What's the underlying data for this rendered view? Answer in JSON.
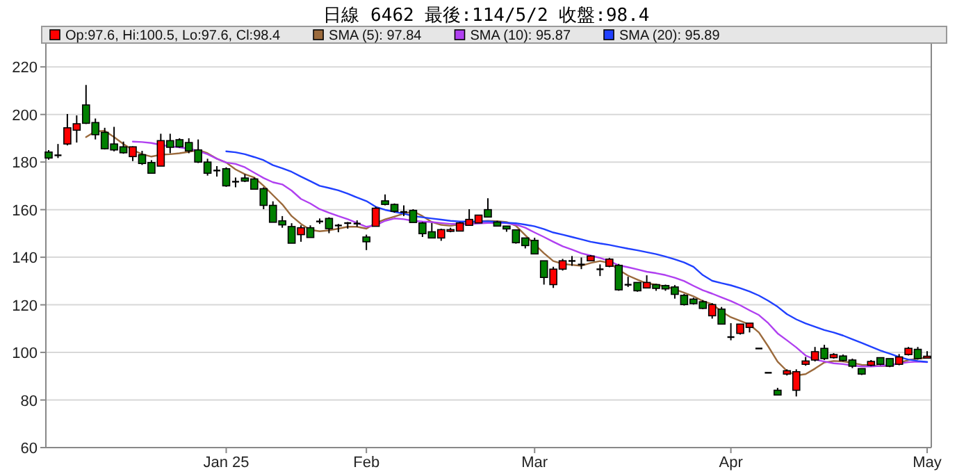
{
  "chart_data": {
    "type": "candlestick",
    "title": "日線 6462 最後:114/5/2 收盤:98.4",
    "categories": [
      null,
      null,
      null,
      null,
      null,
      null,
      null,
      null,
      null,
      null,
      null,
      null,
      null,
      null,
      null,
      null,
      null,
      null,
      null,
      "Jan 25",
      null,
      null,
      null,
      null,
      null,
      null,
      null,
      null,
      null,
      null,
      null,
      null,
      null,
      null,
      "Feb",
      null,
      null,
      null,
      null,
      null,
      null,
      null,
      null,
      null,
      null,
      null,
      null,
      null,
      null,
      null,
      null,
      null,
      "Mar",
      null,
      null,
      null,
      null,
      null,
      null,
      null,
      null,
      null,
      null,
      null,
      null,
      null,
      null,
      null,
      null,
      null,
      null,
      null,
      null,
      "Apr",
      null,
      null,
      null,
      null,
      null,
      null,
      null,
      null,
      null,
      null,
      null,
      null,
      null,
      null,
      null,
      null,
      null,
      null,
      null,
      null,
      "May"
    ],
    "ylim": [
      60,
      230
    ],
    "yticks": [
      60,
      80,
      100,
      120,
      140,
      160,
      180,
      200,
      220
    ],
    "grid": "y",
    "legend": "top",
    "series": [
      {
        "type": "candlestick",
        "name": "Op:97.6, Hi:100.5, Lo:97.6, Cl:98.4",
        "color": "#ff0000",
        "ohlc": [
          [
            184.2,
            185,
            181,
            181.7
          ],
          [
            182.9,
            187.6,
            181.7,
            182.9
          ],
          [
            187.6,
            200.2,
            187.0,
            194.4
          ],
          [
            193.4,
            199.6,
            188.2,
            196.1
          ],
          [
            204.0,
            212.4,
            196.0,
            196.3
          ],
          [
            196.6,
            198.3,
            189.5,
            191.5
          ],
          [
            192.5,
            194.4,
            185.3,
            185.6
          ],
          [
            187.6,
            194.8,
            184.5,
            185.1
          ],
          [
            186.4,
            188.6,
            183.5,
            183.9
          ],
          [
            182.3,
            186.6,
            180.4,
            186.4
          ],
          [
            183.1,
            184.7,
            178.8,
            179.4
          ],
          [
            179.8,
            180.8,
            175.3,
            175.3
          ],
          [
            178.3,
            191.9,
            178.3,
            189.0
          ],
          [
            189.0,
            191.9,
            183.7,
            186.2
          ],
          [
            189.4,
            190.0,
            186.0,
            186.4
          ],
          [
            188.2,
            190.0,
            183.7,
            184.7
          ],
          [
            185.1,
            189.5,
            179.6,
            180.0
          ],
          [
            180.0,
            181.4,
            174.3,
            175.3
          ],
          [
            176.5,
            178.3,
            173.9,
            176.5
          ],
          [
            177.2,
            177.8,
            169.6,
            170.0
          ],
          [
            171.8,
            173.5,
            169.4,
            171.8
          ],
          [
            173.3,
            174.9,
            171.6,
            172.0
          ],
          [
            172.9,
            173.5,
            168.6,
            168.6
          ],
          [
            168.8,
            169.4,
            160.2,
            161.8
          ],
          [
            161.8,
            163.5,
            154.7,
            154.7
          ],
          [
            155.3,
            157.3,
            152.4,
            153.6
          ],
          [
            152.9,
            154.3,
            145.9,
            145.9
          ],
          [
            149.5,
            153.4,
            146.5,
            152.4
          ],
          [
            152.4,
            153.4,
            148.3,
            148.3
          ],
          [
            155.1,
            156.3,
            154.0,
            155.1
          ],
          [
            156.3,
            156.8,
            150.1,
            152.0
          ],
          [
            153.4,
            154.0,
            150.5,
            153.4
          ],
          [
            154.4,
            154.8,
            152.0,
            154.4
          ],
          [
            154.2,
            155.5,
            152.8,
            154.2
          ],
          [
            148.5,
            149.5,
            143.0,
            146.5
          ],
          [
            153.0,
            161.2,
            153.0,
            160.6
          ],
          [
            163.7,
            166.4,
            161.8,
            162.2
          ],
          [
            162.2,
            162.6,
            158.7,
            159.3
          ],
          [
            159.1,
            161.8,
            157.3,
            159.1
          ],
          [
            159.7,
            160.2,
            154.6,
            154.6
          ],
          [
            154.4,
            154.8,
            148.5,
            149.9
          ],
          [
            150.7,
            154.4,
            148.1,
            148.1
          ],
          [
            148.1,
            152.0,
            146.9,
            151.6
          ],
          [
            150.9,
            152.4,
            150.5,
            151.6
          ],
          [
            151.0,
            154.8,
            150.9,
            154.4
          ],
          [
            153.4,
            160.2,
            153.4,
            155.9
          ],
          [
            154.4,
            157.7,
            154.4,
            157.7
          ],
          [
            160.0,
            164.8,
            156.9,
            156.9
          ],
          [
            154.8,
            155.3,
            153.1,
            153.1
          ],
          [
            153.1,
            153.1,
            150.7,
            151.9
          ],
          [
            151.5,
            151.5,
            145.7,
            146.1
          ],
          [
            148.1,
            148.1,
            143.7,
            144.9
          ],
          [
            147.1,
            148.2,
            141.4,
            141.4
          ],
          [
            138.5,
            138.5,
            128.5,
            131.5
          ],
          [
            128.5,
            136.0,
            127.1,
            135.0
          ],
          [
            135.0,
            139.3,
            134.4,
            138.5
          ],
          [
            138.5,
            140.5,
            136.4,
            138.5
          ],
          [
            137.0,
            139.9,
            135.0,
            137.0
          ],
          [
            138.5,
            140.9,
            138.3,
            140.5
          ],
          [
            135.0,
            137.0,
            132.1,
            135.0
          ],
          [
            136.2,
            139.7,
            135.8,
            139.2
          ],
          [
            136.6,
            137.2,
            125.9,
            126.3
          ],
          [
            128.5,
            131.8,
            127.5,
            128.5
          ],
          [
            129.4,
            129.4,
            125.5,
            125.9
          ],
          [
            127.1,
            132.4,
            126.9,
            129.4
          ],
          [
            128.5,
            128.8,
            125.9,
            126.9
          ],
          [
            128.1,
            128.5,
            125.9,
            126.7
          ],
          [
            127.5,
            128.3,
            122.6,
            124.4
          ],
          [
            124.0,
            124.6,
            119.7,
            120.1
          ],
          [
            122.4,
            123.0,
            120.1,
            120.5
          ],
          [
            121.3,
            122.0,
            118.2,
            118.5
          ],
          [
            115.4,
            120.7,
            114.2,
            120.1
          ],
          [
            118.2,
            119.1,
            111.9,
            111.9
          ],
          [
            106.5,
            112.3,
            105.1,
            106.5
          ],
          [
            108.0,
            111.9,
            107.5,
            111.9
          ],
          [
            110.5,
            112.3,
            108.4,
            112.3
          ],
          [
            101.7,
            101.7,
            101.7,
            101.7
          ],
          [
            91.5,
            91.5,
            91.5,
            91.5
          ],
          [
            84.1,
            85.1,
            82.1,
            82.1
          ],
          [
            90.9,
            92.9,
            90.3,
            92.3
          ],
          [
            84.1,
            92.9,
            81.5,
            91.9
          ],
          [
            95.0,
            98.1,
            94.4,
            96.4
          ],
          [
            96.8,
            102.3,
            96.2,
            100.3
          ],
          [
            101.7,
            103.2,
            96.8,
            97.4
          ],
          [
            97.8,
            99.7,
            97.4,
            99.1
          ],
          [
            98.5,
            99.1,
            96.2,
            96.6
          ],
          [
            96.8,
            97.4,
            93.4,
            94.2
          ],
          [
            93.2,
            93.2,
            90.5,
            90.9
          ],
          [
            94.6,
            96.8,
            94.2,
            96.2
          ],
          [
            97.8,
            97.8,
            94.6,
            95.0
          ],
          [
            97.4,
            97.4,
            93.8,
            94.2
          ],
          [
            95.0,
            99.3,
            94.6,
            98.1
          ],
          [
            99.1,
            102.3,
            98.7,
            101.7
          ],
          [
            101.3,
            102.3,
            97.0,
            97.4
          ],
          [
            97.6,
            100.5,
            97.6,
            98.4
          ]
        ],
        "colors": [
          "#008000",
          "#000000",
          "#ff0000",
          "#ff0000",
          "#008000",
          "#008000",
          "#008000",
          "#008000",
          "#008000",
          "#ff0000",
          "#008000",
          "#008000",
          "#ff0000",
          "#008000",
          "#008000",
          "#008000",
          "#008000",
          "#008000",
          "#000000",
          "#008000",
          "#000000",
          "#008000",
          "#008000",
          "#008000",
          "#008000",
          "#008000",
          "#008000",
          "#ff0000",
          "#008000",
          "#000000",
          "#008000",
          "#000000",
          "#000000",
          "#000000",
          "#008000",
          "#ff0000",
          "#008000",
          "#008000",
          "#000000",
          "#008000",
          "#008000",
          "#008000",
          "#ff0000",
          "#ff0000",
          "#ff0000",
          "#ff0000",
          "#ff0000",
          "#008000",
          "#008000",
          "#008000",
          "#008000",
          "#008000",
          "#008000",
          "#008000",
          "#ff0000",
          "#ff0000",
          "#000000",
          "#000000",
          "#ff0000",
          "#000000",
          "#ff0000",
          "#008000",
          "#000000",
          "#008000",
          "#ff0000",
          "#008000",
          "#008000",
          "#008000",
          "#008000",
          "#008000",
          "#008000",
          "#ff0000",
          "#008000",
          "#000000",
          "#ff0000",
          "#ff0000",
          "#000000",
          "#000000",
          "#008000",
          "#ff0000",
          "#ff0000",
          "#ff0000",
          "#ff0000",
          "#008000",
          "#ff0000",
          "#008000",
          "#008000",
          "#008000",
          "#ff0000",
          "#008000",
          "#008000",
          "#ff0000",
          "#ff0000",
          "#008000",
          "#ff0000"
        ]
      },
      {
        "type": "line",
        "name": "SMA (5): 97.84",
        "color": "#9b6a3c",
        "values": [
          null,
          null,
          null,
          null,
          190.5,
          192.9,
          193.1,
          190.5,
          187.6,
          185.1,
          183.3,
          182.3,
          183.1,
          183.3,
          183.7,
          184.3,
          185.1,
          183.7,
          181.4,
          179.8,
          176.9,
          174.9,
          173.5,
          170.0,
          166.1,
          162.2,
          157.3,
          154.0,
          151.5,
          150.9,
          151.3,
          152.0,
          152.8,
          152.8,
          152.0,
          154.4,
          155.9,
          157.1,
          158.3,
          159.3,
          157.3,
          154.8,
          153.6,
          153.2,
          153.8,
          154.4,
          155.1,
          155.3,
          155.2,
          154.8,
          153.2,
          149.3,
          145.4,
          141.7,
          138.4,
          137.2,
          136.8,
          136.4,
          137.6,
          138.4,
          137.6,
          134.7,
          132.3,
          130.6,
          129.0,
          128.5,
          127.7,
          126.5,
          125.1,
          123.6,
          121.6,
          120.3,
          117.2,
          114.8,
          113.3,
          111.7,
          108.4,
          102.5,
          96.1,
          92.2,
          90.3,
          90.9,
          93.2,
          95.8,
          96.4,
          96.2,
          95.6,
          94.8,
          94.6,
          94.2,
          94.4,
          95.6,
          96.8,
          97.4,
          97.8
        ]
      },
      {
        "type": "line",
        "name": "SMA (10): 95.87",
        "color": "#b040f0",
        "values": [
          null,
          null,
          null,
          null,
          null,
          null,
          null,
          null,
          null,
          188.6,
          188.4,
          188.0,
          187.2,
          186.6,
          186.2,
          185.6,
          184.7,
          183.3,
          181.4,
          179.8,
          179.2,
          177.8,
          175.5,
          173.3,
          171.5,
          170.6,
          168.0,
          164.5,
          162.6,
          160.2,
          158.7,
          157.3,
          156.0,
          154.4,
          152.8,
          153.4,
          155.3,
          156.3,
          156.0,
          155.3,
          155.0,
          154.8,
          154.4,
          154.0,
          154.0,
          154.0,
          154.2,
          154.4,
          154.5,
          154.3,
          153.7,
          152.4,
          150.4,
          148.5,
          146.5,
          144.6,
          143.2,
          141.7,
          140.7,
          139.7,
          138.4,
          136.6,
          135.8,
          134.9,
          133.9,
          133.3,
          132.5,
          131.4,
          130.0,
          128.0,
          126.1,
          124.7,
          123.1,
          121.6,
          119.8,
          117.7,
          115.7,
          112.3,
          108.0,
          105.1,
          102.1,
          98.7,
          97.0,
          96.2,
          95.4,
          95.1,
          94.5,
          94.1,
          94.1,
          94.3,
          94.7,
          95.3,
          95.9,
          96.1,
          95.9
        ]
      },
      {
        "type": "line",
        "name": "SMA (20): 95.89",
        "color": "#2040ff",
        "values": [
          null,
          null,
          null,
          null,
          null,
          null,
          null,
          null,
          null,
          null,
          null,
          null,
          null,
          null,
          null,
          null,
          null,
          null,
          null,
          184.5,
          184.1,
          183.3,
          182.1,
          180.8,
          178.7,
          177.4,
          175.9,
          173.9,
          172.0,
          170.0,
          169.1,
          168.1,
          166.7,
          165.1,
          163.6,
          161.2,
          159.9,
          159.1,
          158.3,
          157.3,
          156.8,
          156.3,
          155.8,
          155.3,
          155.0,
          155.0,
          155.0,
          155.1,
          154.8,
          154.5,
          154.3,
          153.7,
          153.0,
          151.8,
          150.4,
          149.5,
          148.5,
          147.5,
          146.5,
          145.8,
          145.2,
          144.4,
          143.6,
          142.9,
          142.1,
          141.3,
          140.3,
          139.1,
          137.8,
          136.0,
          132.5,
          130.1,
          129.1,
          128.2,
          127.0,
          125.6,
          123.9,
          121.7,
          119.2,
          116.1,
          113.9,
          112.2,
          110.8,
          109.4,
          108.4,
          107.1,
          105.5,
          104.0,
          102.4,
          100.8,
          99.5,
          98.1,
          97.0,
          96.4,
          96.0
        ]
      }
    ]
  }
}
